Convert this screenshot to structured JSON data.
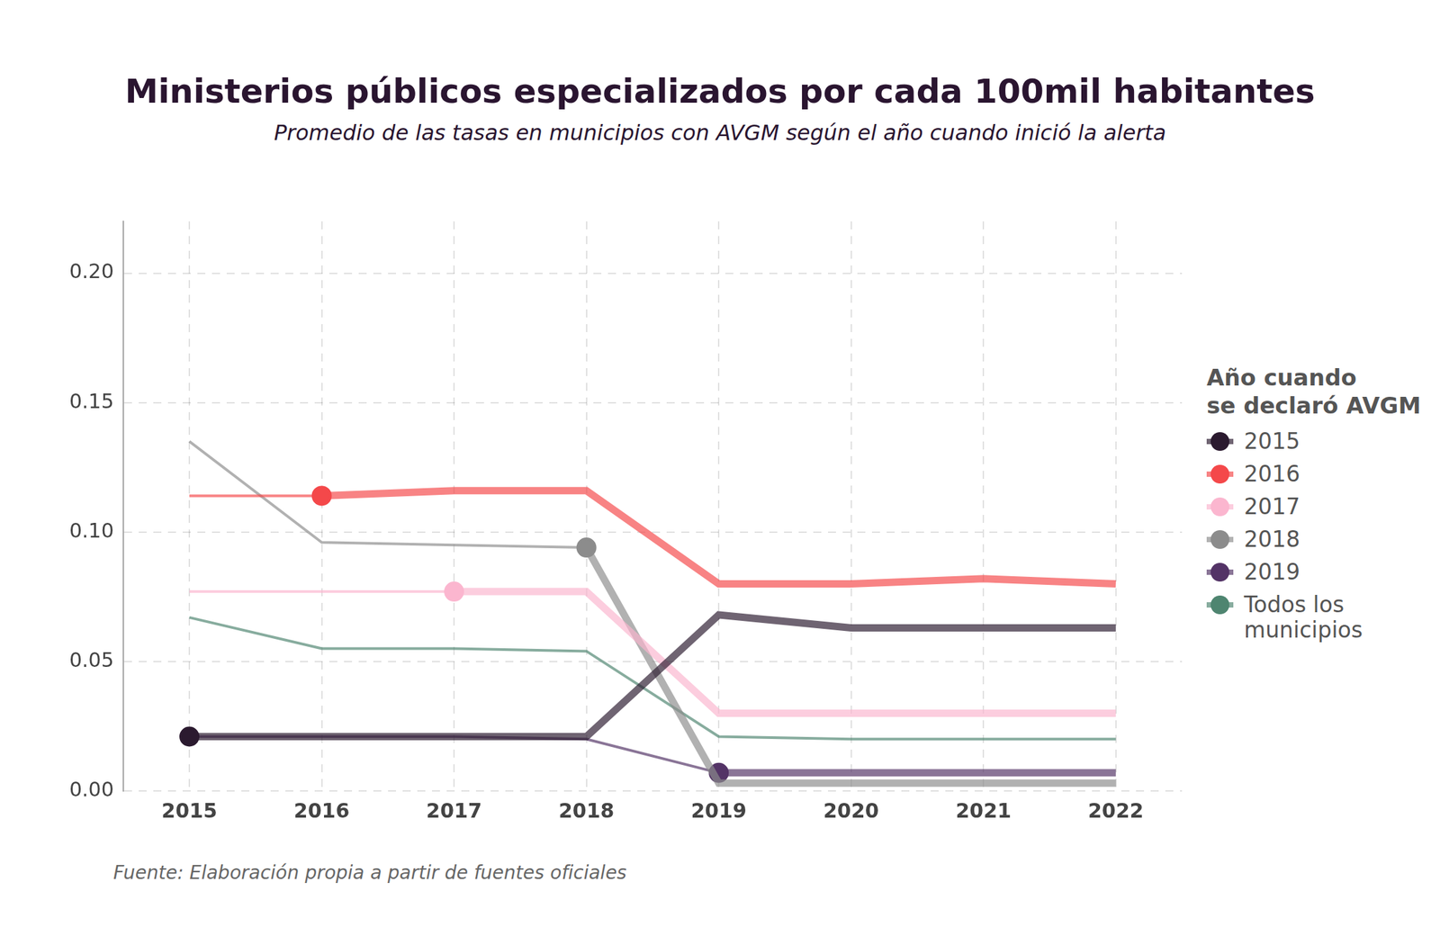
{
  "chart_data": {
    "type": "line",
    "title": "Ministerios públicos especializados por cada 100mil habitantes",
    "subtitle": "Promedio de las tasas en municipios con AVGM según el año cuando inició la alerta",
    "source": "Fuente: Elaboración propia a partir de fuentes oficiales",
    "legend_title": [
      "Año cuando",
      "se declaró AVGM"
    ],
    "legend": "right",
    "grid": true,
    "categories": [
      "2015",
      "2016",
      "2017",
      "2018",
      "2019",
      "2020",
      "2021",
      "2022"
    ],
    "series": [
      {
        "name": "2015",
        "color": "#2b1a2f",
        "marker": "circle",
        "values": [
          0.021,
          0.021,
          0.021,
          0.021,
          0.068,
          0.063,
          0.063,
          0.063
        ]
      },
      {
        "name": "2016",
        "color": "#f4484a",
        "marker": "circle",
        "values": [
          0.114,
          0.114,
          0.116,
          0.116,
          0.08,
          0.08,
          0.082,
          0.08
        ]
      },
      {
        "name": "2017",
        "color": "#fbb6cf",
        "marker": "circle",
        "values": [
          0.077,
          0.077,
          0.077,
          0.077,
          0.03,
          0.03,
          0.03,
          0.03
        ]
      },
      {
        "name": "2018",
        "color": "#8c8c8c",
        "marker": "circle",
        "values": [
          0.135,
          0.096,
          0.095,
          0.094,
          0.003,
          0.003,
          0.003,
          0.003
        ]
      },
      {
        "name": "2019",
        "color": "#533366",
        "marker": "circle",
        "values": [
          0.021,
          0.021,
          0.021,
          0.02,
          0.007,
          0.007,
          0.007,
          0.007
        ]
      },
      {
        "name": "Todos los municipios",
        "color": "#4e8570",
        "values": [
          0.067,
          0.055,
          0.055,
          0.054,
          0.021,
          0.02,
          0.02,
          0.02
        ]
      }
    ],
    "ylim": [
      0,
      0.22
    ],
    "yticks": [
      {
        "value": 0,
        "label": "0.00"
      },
      0.05,
      {
        "value": 0.1,
        "label": "0.10"
      },
      0.15,
      {
        "value": 0.2,
        "label": "0.20"
      }
    ]
  }
}
